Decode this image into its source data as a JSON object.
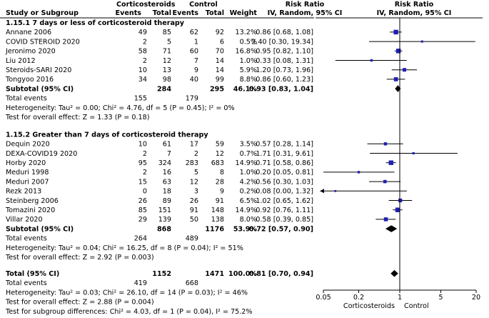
{
  "header": {
    "group1": "Corticosteroids",
    "group2": "Control",
    "study_col": "Study or Subgroup",
    "events": "Events",
    "total": "Total",
    "weight": "Weight",
    "rr_title": "Risk Ratio",
    "rr_method": "IV, Random, 95% CI",
    "plot_title": "Risk Ratio",
    "plot_method": "IV, Random, 95% CI"
  },
  "subgroups": [
    {
      "title": "1.15.1 7 days or less of corticosteroid therapy",
      "studies": [
        {
          "name": "Annane 2006",
          "e1": "49",
          "n1": "85",
          "e2": "62",
          "n2": "92",
          "weight": "13.2%",
          "ci_text": "0.86 [0.68, 1.08]",
          "rr": 0.86,
          "lo": 0.68,
          "hi": 1.08
        },
        {
          "name": "COVID STEROID 2020",
          "e1": "2",
          "n1": "5",
          "e2": "1",
          "n2": "6",
          "weight": "0.5%",
          "ci_text": "2.40 [0.30, 19.34]",
          "rr": 2.4,
          "lo": 0.3,
          "hi": 19.34
        },
        {
          "name": "Jeronimo 2020",
          "e1": "58",
          "n1": "71",
          "e2": "60",
          "n2": "70",
          "weight": "16.8%",
          "ci_text": "0.95 [0.82, 1.10]",
          "rr": 0.95,
          "lo": 0.82,
          "hi": 1.1
        },
        {
          "name": "Liu 2012",
          "e1": "2",
          "n1": "12",
          "e2": "7",
          "n2": "14",
          "weight": "1.0%",
          "ci_text": "0.33 [0.08, 1.31]",
          "rr": 0.33,
          "lo": 0.08,
          "hi": 1.31
        },
        {
          "name": "Steroids-SARI 2020",
          "e1": "10",
          "n1": "13",
          "e2": "9",
          "n2": "14",
          "weight": "5.9%",
          "ci_text": "1.20 [0.73, 1.96]",
          "rr": 1.2,
          "lo": 0.73,
          "hi": 1.96
        },
        {
          "name": "Tongyoo 2016",
          "e1": "34",
          "n1": "98",
          "e2": "40",
          "n2": "99",
          "weight": "8.8%",
          "ci_text": "0.86 [0.60, 1.23]",
          "rr": 0.86,
          "lo": 0.6,
          "hi": 1.23
        }
      ],
      "subtotal": {
        "label": "Subtotal (95% CI)",
        "n1": "284",
        "n2": "295",
        "weight": "46.1%",
        "ci_text": "0.93 [0.83, 1.04]",
        "rr": 0.93,
        "lo": 0.83,
        "hi": 1.04
      },
      "total_events": {
        "label": "Total events",
        "e1": "155",
        "e2": "179"
      },
      "heterogeneity": "Heterogeneity: Tau² = 0.00; Chi² = 4.76, df = 5 (P = 0.45); I² = 0%",
      "overall": "Test for overall effect: Z = 1.33 (P = 0.18)"
    },
    {
      "title": "1.15.2 Greater than 7 days of corticosteroid therapy",
      "studies": [
        {
          "name": "Dequin 2020",
          "e1": "10",
          "n1": "61",
          "e2": "17",
          "n2": "59",
          "weight": "3.5%",
          "ci_text": "0.57 [0.28, 1.14]",
          "rr": 0.57,
          "lo": 0.28,
          "hi": 1.14
        },
        {
          "name": "DEXA-COVID19 2020",
          "e1": "2",
          "n1": "7",
          "e2": "2",
          "n2": "12",
          "weight": "0.7%",
          "ci_text": "1.71 [0.31, 9.61]",
          "rr": 1.71,
          "lo": 0.31,
          "hi": 9.61
        },
        {
          "name": "Horby 2020",
          "e1": "95",
          "n1": "324",
          "e2": "283",
          "n2": "683",
          "weight": "14.9%",
          "ci_text": "0.71 [0.58, 0.86]",
          "rr": 0.71,
          "lo": 0.58,
          "hi": 0.86
        },
        {
          "name": "Meduri 1998",
          "e1": "2",
          "n1": "16",
          "e2": "5",
          "n2": "8",
          "weight": "1.0%",
          "ci_text": "0.20 [0.05, 0.81]",
          "rr": 0.2,
          "lo": 0.05,
          "hi": 0.81
        },
        {
          "name": "Meduri 2007",
          "e1": "15",
          "n1": "63",
          "e2": "12",
          "n2": "28",
          "weight": "4.2%",
          "ci_text": "0.56 [0.30, 1.03]",
          "rr": 0.56,
          "lo": 0.3,
          "hi": 1.03
        },
        {
          "name": "Rezk 2013",
          "e1": "0",
          "n1": "18",
          "e2": "3",
          "n2": "9",
          "weight": "0.2%",
          "ci_text": "0.08 [0.00, 1.32]",
          "rr": 0.08,
          "lo": 0.004,
          "hi": 1.32
        },
        {
          "name": "Steinberg 2006",
          "e1": "26",
          "n1": "89",
          "e2": "26",
          "n2": "91",
          "weight": "6.5%",
          "ci_text": "1.02 [0.65, 1.62]",
          "rr": 1.02,
          "lo": 0.65,
          "hi": 1.62
        },
        {
          "name": "Tomazini 2020",
          "e1": "85",
          "n1": "151",
          "e2": "91",
          "n2": "148",
          "weight": "14.9%",
          "ci_text": "0.92 [0.76, 1.11]",
          "rr": 0.92,
          "lo": 0.76,
          "hi": 1.11
        },
        {
          "name": "Villar 2020",
          "e1": "29",
          "n1": "139",
          "e2": "50",
          "n2": "138",
          "weight": "8.0%",
          "ci_text": "0.58 [0.39, 0.85]",
          "rr": 0.58,
          "lo": 0.39,
          "hi": 0.85
        }
      ],
      "subtotal": {
        "label": "Subtotal (95% CI)",
        "n1": "868",
        "n2": "1176",
        "weight": "53.9%",
        "ci_text": "0.72 [0.57, 0.90]",
        "rr": 0.72,
        "lo": 0.57,
        "hi": 0.9
      },
      "total_events": {
        "label": "Total events",
        "e1": "264",
        "e2": "489"
      },
      "heterogeneity": "Heterogeneity: Tau² = 0.04; Chi² = 16.25, df = 8 (P = 0.04); I² = 51%",
      "overall": "Test for overall effect: Z = 2.92 (P = 0.003)"
    }
  ],
  "total": {
    "label": "Total (95% CI)",
    "n1": "1152",
    "n2": "1471",
    "weight": "100.0%",
    "ci_text": "0.81 [0.70, 0.94]",
    "rr": 0.81,
    "lo": 0.7,
    "hi": 0.94
  },
  "total_events": {
    "label": "Total events",
    "e1": "419",
    "e2": "668"
  },
  "heterogeneity": "Heterogeneity: Tau² = 0.03; Chi² = 26.10, df = 14 (P = 0.03); I² = 46%",
  "overall": "Test for overall effect: Z = 2.88 (P = 0.004)",
  "subgroup_diff": "Test for subgroup differences: Chi² = 4.03, df = 1 (P = 0.04), I² = 75.2%",
  "colors": {
    "marker": "#1f1fb4",
    "line": "#000000"
  },
  "chart_data": {
    "type": "forest",
    "title": "Risk Ratio",
    "subtitle": "IV, Random, 95% CI",
    "scale": "log",
    "xlim": [
      0.05,
      20
    ],
    "ticks": [
      0.05,
      0.2,
      1,
      5,
      20
    ],
    "tick_labels": [
      "0.05",
      "0.2",
      "1",
      "5",
      "20"
    ],
    "null_value": 1,
    "favours_left": "Corticosteroids",
    "favours_right": "Control"
  }
}
